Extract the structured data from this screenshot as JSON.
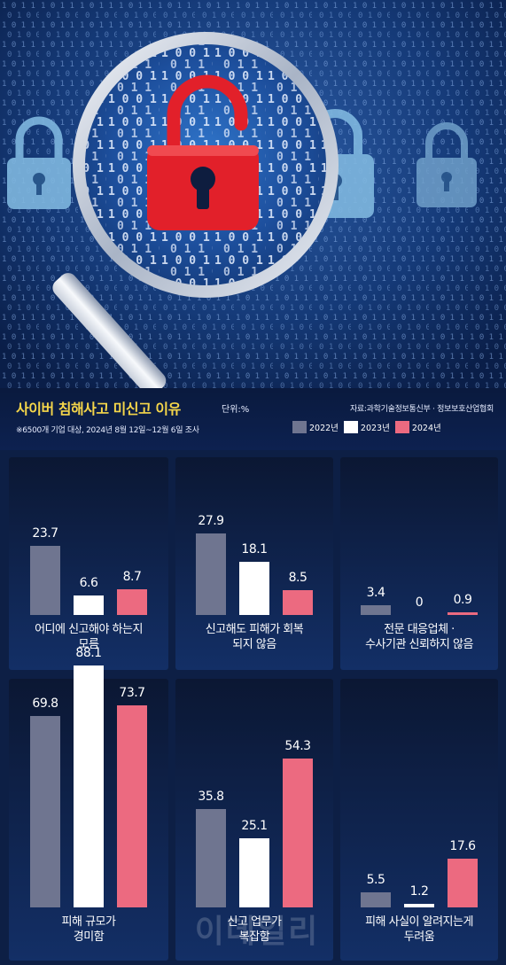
{
  "header": {
    "title": "사이버 침해사고 미신고 이유",
    "unit": "단위:%",
    "source": "자료:과학기술정보통신부 · 정보보호산업협회",
    "note": "※6500개 기업 대상, 2024년 8월 12일~12월 6일 조사"
  },
  "watermark": "이데일리",
  "colors": {
    "2022": "#6f7590",
    "2023": "#ffffff",
    "2024": "#ec6a80",
    "title": "#f5d64a"
  },
  "chart_data": {
    "type": "bar",
    "title": "사이버 침해사고 미신고 이유",
    "unit": "단위:%",
    "legend": [
      {
        "name": "2022년",
        "color": "#6f7590"
      },
      {
        "name": "2023년",
        "color": "#ffffff"
      },
      {
        "name": "2024년",
        "color": "#ec6a80"
      }
    ],
    "legend_position": "top-right",
    "groups": [
      {
        "label": [
          "어디에 신고해야 하는지",
          "모름"
        ],
        "values": [
          23.7,
          6.6,
          8.7
        ],
        "labels": [
          "23.7",
          "6.6",
          "8.7"
        ]
      },
      {
        "label": [
          "신고해도 피해가 회복",
          "되지 않음"
        ],
        "values": [
          27.9,
          18.1,
          8.5
        ],
        "labels": [
          "27.9",
          "18.1",
          "8.5"
        ]
      },
      {
        "label": [
          "전문 대응업체 ·",
          "수사기관 신뢰하지 않음"
        ],
        "values": [
          3.4,
          0,
          0.9
        ],
        "labels": [
          "3.4",
          "0",
          "0.9"
        ]
      },
      {
        "label": [
          "피해 규모가",
          "경미함"
        ],
        "values": [
          69.8,
          88.1,
          73.7
        ],
        "labels": [
          "69.8",
          "88.1",
          "73.7"
        ]
      },
      {
        "label": [
          "신고 업무가",
          "복잡함"
        ],
        "values": [
          35.8,
          25.1,
          54.3
        ],
        "labels": [
          "35.8",
          "25.1",
          "54.3"
        ]
      },
      {
        "label": [
          "피해 사실이 알려지는게",
          "두려움"
        ],
        "values": [
          5.5,
          1.2,
          17.6
        ],
        "labels": [
          "5.5",
          "1.2",
          "17.6"
        ]
      }
    ]
  }
}
